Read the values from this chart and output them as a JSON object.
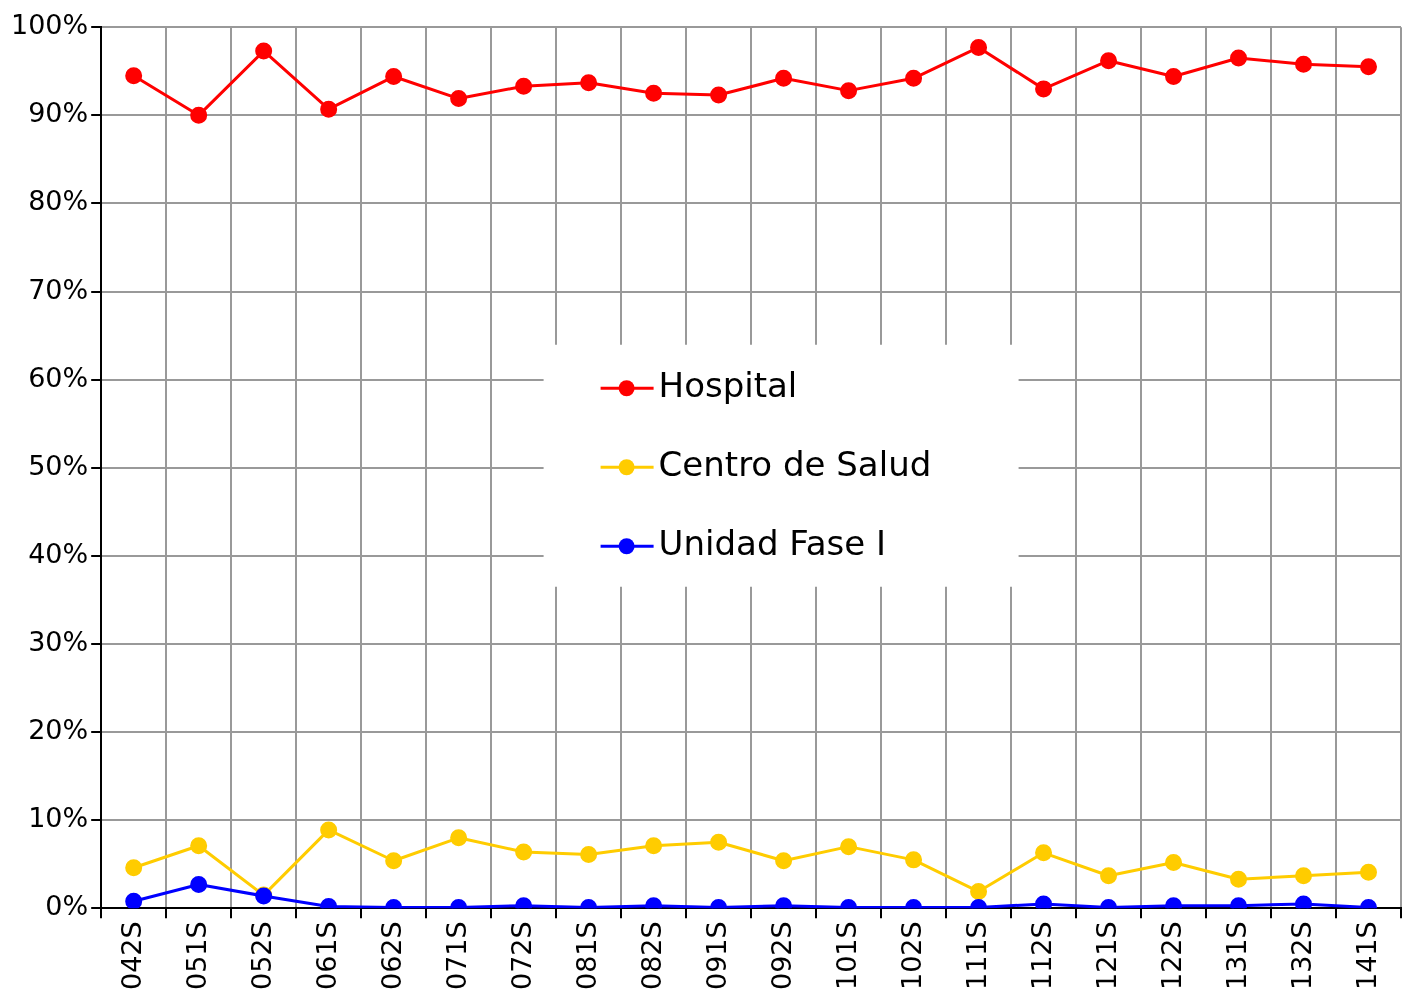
{
  "chart_data": {
    "type": "line",
    "categories": [
      "042S",
      "051S",
      "052S",
      "061S",
      "062S",
      "071S",
      "072S",
      "081S",
      "082S",
      "091S",
      "092S",
      "101S",
      "102S",
      "111S",
      "112S",
      "121S",
      "122S",
      "131S",
      "132S",
      "141S"
    ],
    "series": [
      {
        "name": "Hospital",
        "color": "#ff0000",
        "values": [
          94.5,
          90.0,
          97.3,
          90.7,
          94.4,
          91.9,
          93.3,
          93.7,
          92.5,
          92.3,
          94.2,
          92.8,
          94.2,
          97.7,
          93.0,
          96.2,
          94.4,
          96.5,
          95.8,
          95.5
        ]
      },
      {
        "name": "Centro de Salud",
        "color": "#ffcc00",
        "values": [
          4.6,
          7.1,
          1.5,
          8.9,
          5.4,
          8.0,
          6.4,
          6.1,
          7.1,
          7.5,
          5.4,
          7.0,
          5.5,
          1.9,
          6.3,
          3.7,
          5.2,
          3.3,
          3.7,
          4.1
        ]
      },
      {
        "name": "Unidad Fase I",
        "color": "#0000ff",
        "values": [
          0.8,
          2.7,
          1.4,
          0.2,
          0.1,
          0.1,
          0.3,
          0.1,
          0.3,
          0.1,
          0.3,
          0.1,
          0.1,
          0.1,
          0.5,
          0.1,
          0.3,
          0.3,
          0.5,
          0.1
        ]
      }
    ],
    "ylim": [
      0,
      100
    ],
    "yticks": [
      {
        "value": 0,
        "label": "0%"
      },
      {
        "value": 10,
        "label": "10%"
      },
      {
        "value": 20,
        "label": "20%"
      },
      {
        "value": 30,
        "label": "30%"
      },
      {
        "value": 40,
        "label": "40%"
      },
      {
        "value": 50,
        "label": "50%"
      },
      {
        "value": 60,
        "label": "60%"
      },
      {
        "value": 70,
        "label": "70%"
      },
      {
        "value": 80,
        "label": "80%"
      },
      {
        "value": 90,
        "label": "90%"
      },
      {
        "value": 100,
        "label": "100%"
      }
    ],
    "grid": true,
    "legend": "center",
    "marker": "circle",
    "line_style": "solid"
  }
}
